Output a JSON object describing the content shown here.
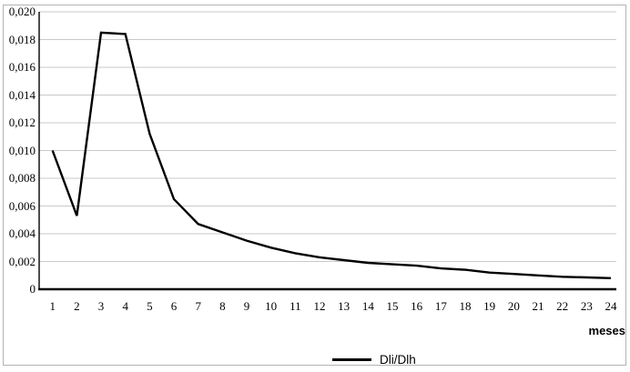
{
  "chart_data": {
    "type": "line",
    "title": "",
    "xlabel": "meses",
    "ylabel": "",
    "categories": [
      "1",
      "2",
      "3",
      "4",
      "5",
      "6",
      "7",
      "8",
      "9",
      "10",
      "11",
      "12",
      "13",
      "14",
      "15",
      "16",
      "17",
      "18",
      "19",
      "20",
      "21",
      "22",
      "23",
      "24"
    ],
    "series": [
      {
        "name": "Dli/Dlh",
        "values": [
          0.01,
          0.0053,
          0.0185,
          0.0184,
          0.0112,
          0.0065,
          0.0047,
          0.0041,
          0.0035,
          0.003,
          0.0026,
          0.0023,
          0.0021,
          0.0019,
          0.0018,
          0.0017,
          0.0015,
          0.0014,
          0.0012,
          0.0011,
          0.001,
          0.0009,
          0.00085,
          0.0008
        ]
      }
    ],
    "ylim": [
      0,
      0.02
    ],
    "ytick_step": 0.002,
    "ytick_labels": [
      "0",
      "0,002",
      "0,004",
      "0,006",
      "0,008",
      "0,010",
      "0,012",
      "0,014",
      "0,016",
      "0,018",
      "0,020"
    ],
    "decimal_separator": ",",
    "grid": "horizontal-only",
    "legend": {
      "position": "bottom-center",
      "entries": [
        {
          "label": "Dli/Dlh",
          "swatch": "black-line"
        }
      ]
    },
    "colors": {
      "line": "#000000",
      "gridline": "#c9c9c9",
      "axis": "#000000",
      "frame_border": "#b3b3b3",
      "background": "#ffffff"
    }
  }
}
